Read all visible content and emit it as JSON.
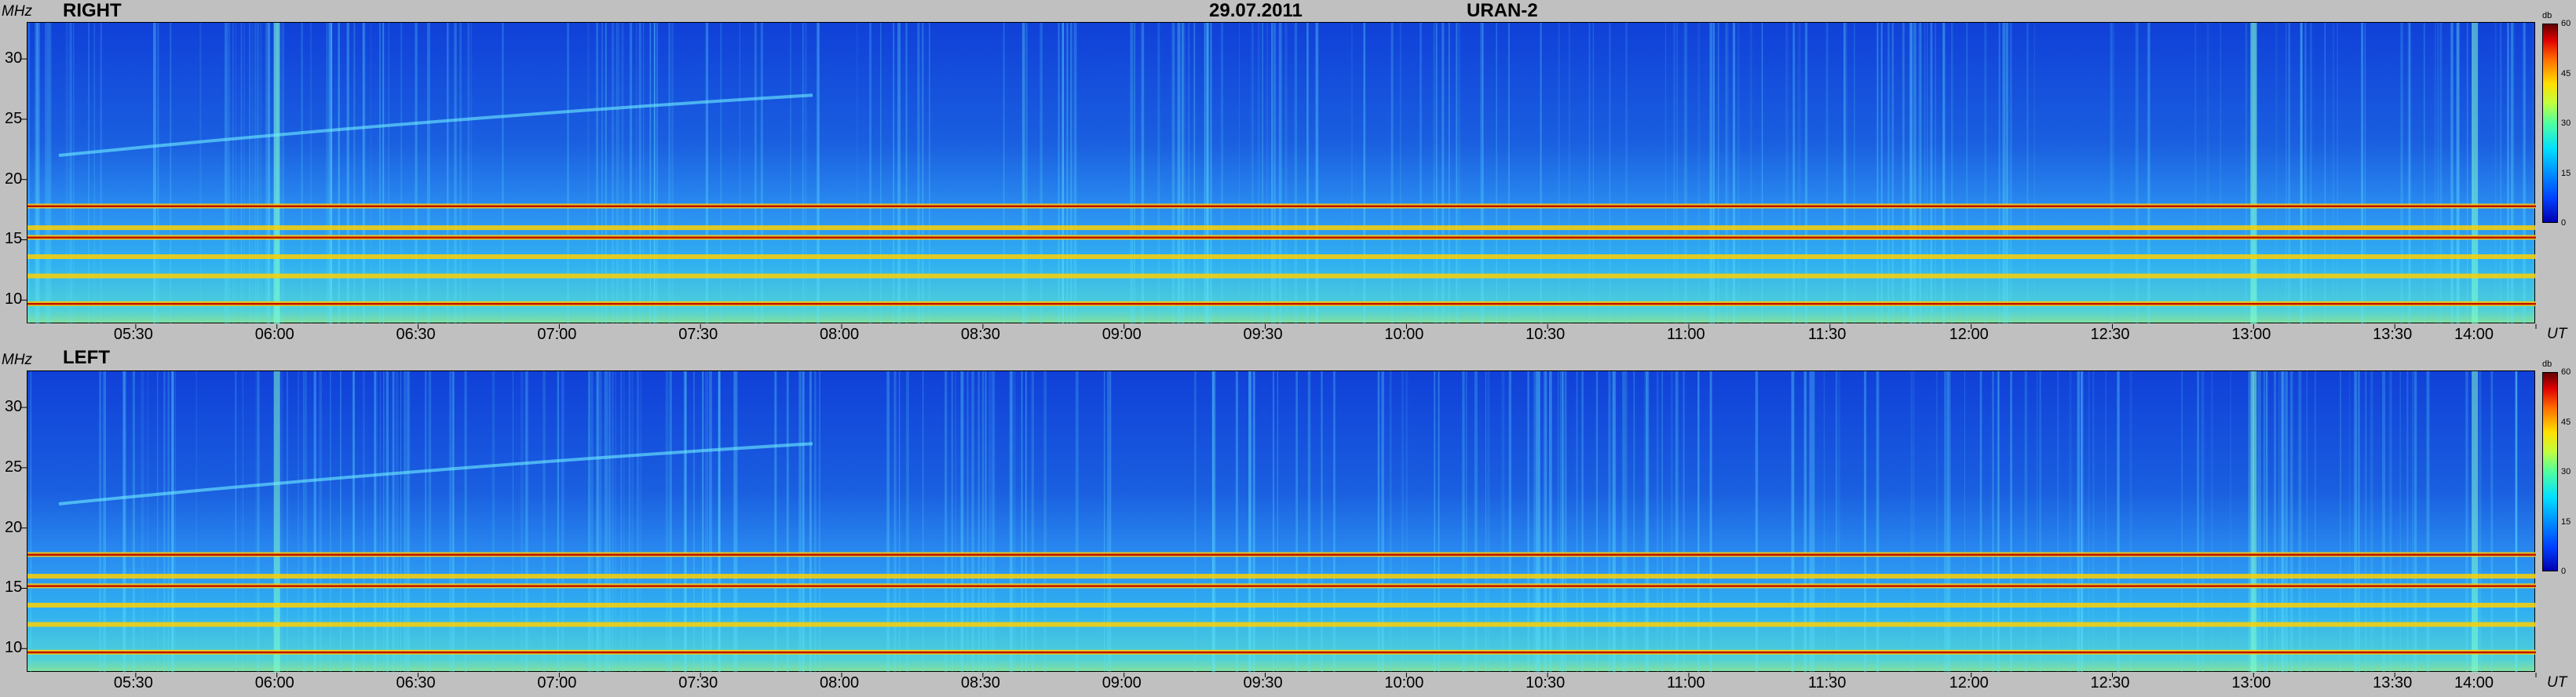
{
  "header": {
    "date": "29.07.2011",
    "instrument": "URAN-2"
  },
  "colors": {
    "background": "#c0c0c0",
    "spectrum_base": "#1a5fe0",
    "rfi_band": "#ffd000",
    "strong_band": "#c01000"
  },
  "chart_data": [
    {
      "type": "heatmap",
      "panel_label": "RIGHT",
      "y_unit": "MHz",
      "x_unit": "UT",
      "x_ticks": [
        "05:30",
        "06:00",
        "06:30",
        "07:00",
        "07:30",
        "08:00",
        "08:30",
        "09:00",
        "09:30",
        "10:00",
        "10:30",
        "11:00",
        "11:30",
        "12:00",
        "12:30",
        "13:00",
        "13:30",
        "14:00"
      ],
      "y_ticks": [
        "10",
        "15",
        "20",
        "25",
        "30"
      ],
      "xlim": [
        "05:07",
        "14:00"
      ],
      "ylim": [
        8,
        33
      ],
      "colorbar": {
        "unit": "db",
        "range": [
          0,
          60
        ],
        "ticks": [
          "60",
          "45",
          "30",
          "15",
          "0"
        ]
      },
      "persistent_bands_mhz": [
        9.7,
        12.0,
        13.6,
        15.2,
        16.0,
        17.8
      ],
      "drifting_band_mhz": {
        "start": 22.0,
        "end": 27.0
      }
    },
    {
      "type": "heatmap",
      "panel_label": "LEFT",
      "y_unit": "MHz",
      "x_unit": "UT",
      "x_ticks": [
        "05:30",
        "06:00",
        "06:30",
        "07:00",
        "07:30",
        "08:00",
        "08:30",
        "09:00",
        "09:30",
        "10:00",
        "10:30",
        "11:00",
        "11:30",
        "12:00",
        "12:30",
        "13:00",
        "13:30",
        "14:00"
      ],
      "y_ticks": [
        "10",
        "15",
        "20",
        "25",
        "30"
      ],
      "xlim": [
        "05:07",
        "14:00"
      ],
      "ylim": [
        8,
        33
      ],
      "colorbar": {
        "unit": "db",
        "range": [
          0,
          60
        ],
        "ticks": [
          "60",
          "45",
          "30",
          "15",
          "0"
        ]
      },
      "persistent_bands_mhz": [
        9.7,
        12.0,
        13.6,
        15.2,
        16.0,
        17.8
      ],
      "drifting_band_mhz": {
        "start": 22.0,
        "end": 27.0
      }
    }
  ]
}
